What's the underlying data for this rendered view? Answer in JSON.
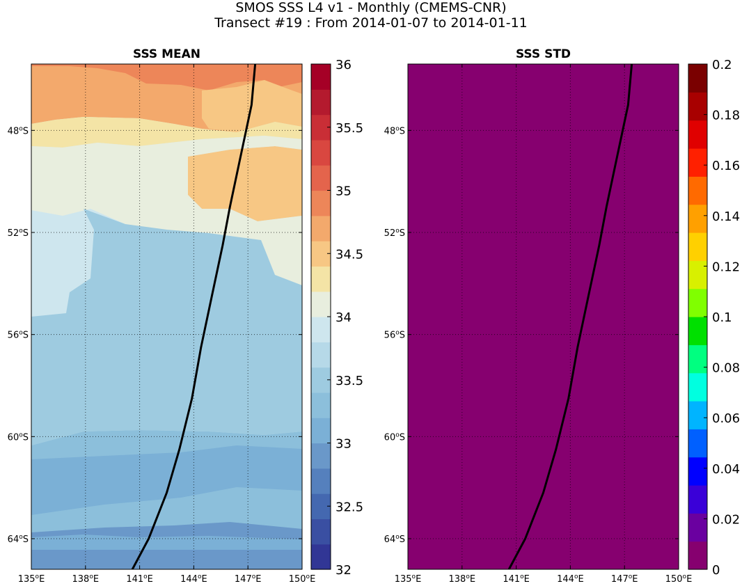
{
  "title_line1": "SMOS SSS L4 v1 - Monthly (CMEMS-CNR)",
  "title_line2": "Transect #19 : From 2014-01-07 to 2014-01-11",
  "chart_data": [
    {
      "type": "heatmap",
      "title": "SSS MEAN",
      "x_ticks": [
        "135°E",
        "138°E",
        "141°E",
        "144°E",
        "147°E",
        "150°E"
      ],
      "x_tick_values": [
        135,
        138,
        141,
        144,
        147,
        150
      ],
      "y_ticks": [
        "48°S",
        "52°S",
        "56°S",
        "60°S",
        "64°S"
      ],
      "y_tick_values": [
        -48,
        -52,
        -56,
        -60,
        -64
      ],
      "xlim": [
        135,
        150
      ],
      "ylim": [
        -65.2,
        -45.4
      ],
      "grid": true,
      "colorbar": {
        "range": [
          32,
          36
        ],
        "ticks": [
          "32",
          "32.5",
          "33",
          "33.5",
          "34",
          "34.5",
          "35",
          "35.5",
          "36"
        ],
        "tick_values": [
          32,
          32.5,
          33,
          33.5,
          34,
          34.5,
          35,
          35.5,
          36
        ],
        "colors": [
          "#313695",
          "#3a4fa2",
          "#4468b0",
          "#5580bd",
          "#6a98c9",
          "#7bb0d6",
          "#8cbfdb",
          "#9ecbe0",
          "#b6d9e8",
          "#cee6ee",
          "#e8eede",
          "#f4e4a6",
          "#f7c784",
          "#f3a96c",
          "#ed8659",
          "#e4644c",
          "#d94740",
          "#c92e36",
          "#b41a2e",
          "#a50026"
        ]
      },
      "zones": [
        {
          "value": 34.6,
          "color": "#f3a96c"
        },
        {
          "value": 34.9,
          "color": "#ed8659"
        },
        {
          "value": 34.4,
          "color": "#f7c784"
        },
        {
          "value": 34.2,
          "color": "#f4e4a6"
        },
        {
          "value": 34.0,
          "color": "#e8eede"
        },
        {
          "value": 33.9,
          "color": "#cee6ee"
        },
        {
          "value": 33.7,
          "color": "#9ecbe0"
        },
        {
          "value": 33.5,
          "color": "#8cbfdb"
        },
        {
          "value": 33.3,
          "color": "#7bb0d6"
        },
        {
          "value": 33.1,
          "color": "#6a98c9"
        }
      ],
      "transect": {
        "lon": [
          147.4,
          147.2,
          146.6,
          146.0,
          145.6,
          145.0,
          144.4,
          143.9,
          143.2,
          142.5,
          141.5,
          140.6
        ],
        "lat": [
          -45.4,
          -47.0,
          -49.0,
          -51.0,
          -52.5,
          -54.5,
          -56.5,
          -58.5,
          -60.5,
          -62.2,
          -64.0,
          -65.2
        ]
      }
    },
    {
      "type": "heatmap",
      "title": "SSS STD",
      "x_ticks": [
        "135°E",
        "138°E",
        "141°E",
        "144°E",
        "147°E",
        "150°E"
      ],
      "x_tick_values": [
        135,
        138,
        141,
        144,
        147,
        150
      ],
      "y_ticks": [
        "48°S",
        "52°S",
        "56°S",
        "60°S",
        "64°S"
      ],
      "y_tick_values": [
        -48,
        -52,
        -56,
        -60,
        -64
      ],
      "xlim": [
        135,
        150
      ],
      "ylim": [
        -65.2,
        -45.4
      ],
      "grid": true,
      "field_value": 0,
      "field_color": "#86006f",
      "colorbar": {
        "range": [
          0,
          0.2
        ],
        "ticks": [
          "0",
          "0.02",
          "0.04",
          "0.06",
          "0.08",
          "0.1",
          "0.12",
          "0.14",
          "0.16",
          "0.18",
          "0.2"
        ],
        "tick_values": [
          0,
          0.02,
          0.04,
          0.06,
          0.08,
          0.1,
          0.12,
          0.14,
          0.16,
          0.18,
          0.2
        ],
        "colors": [
          "#86006f",
          "#6a00a0",
          "#3a00d8",
          "#0000ff",
          "#0060ff",
          "#00b4ff",
          "#00ffe0",
          "#00ff80",
          "#00e000",
          "#80ff00",
          "#d8f000",
          "#ffd000",
          "#ffa000",
          "#ff6a00",
          "#ff2000",
          "#e00000",
          "#a80000",
          "#7a0000"
        ]
      },
      "transect": {
        "lon": [
          147.4,
          147.2,
          146.6,
          146.0,
          145.6,
          145.0,
          144.4,
          143.9,
          143.2,
          142.5,
          141.5,
          140.6
        ],
        "lat": [
          -45.4,
          -47.0,
          -49.0,
          -51.0,
          -52.5,
          -54.5,
          -56.5,
          -58.5,
          -60.5,
          -62.2,
          -64.0,
          -65.2
        ]
      }
    }
  ]
}
